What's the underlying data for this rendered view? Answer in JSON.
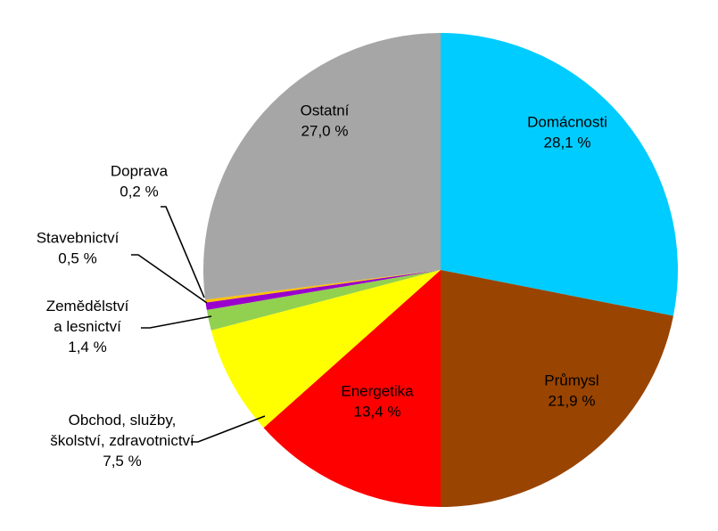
{
  "chart_data": {
    "type": "pie",
    "title": "",
    "slices": [
      {
        "label": "Domácnosti",
        "value": 28.1,
        "display": "28,1 %",
        "color": "#00ccff",
        "label_lines": [
          "Domácnosti"
        ],
        "leader": false
      },
      {
        "label": "Průmysl",
        "value": 21.9,
        "display": "21,9 %",
        "color": "#994400",
        "label_lines": [
          "Průmysl"
        ],
        "leader": false
      },
      {
        "label": "Energetika",
        "value": 13.4,
        "display": "13,4 %",
        "color": "#ff0000",
        "label_lines": [
          "Energetika"
        ],
        "leader": false
      },
      {
        "label": "Obchod, služby, školství, zdravotnictví",
        "value": 7.5,
        "display": "7,5 %",
        "color": "#ffff00",
        "label_lines": [
          "Obchod, služby,",
          "školství, zdravotnictví"
        ],
        "leader": true
      },
      {
        "label": "Zemědělství a lesnictví",
        "value": 1.4,
        "display": "1,4 %",
        "color": "#92d050",
        "label_lines": [
          "Zemědělství",
          "a lesnictví"
        ],
        "leader": true
      },
      {
        "label": "Stavebnictví",
        "value": 0.5,
        "display": "0,5 %",
        "color": "#9900cc",
        "label_lines": [
          "Stavebnictví"
        ],
        "leader": true
      },
      {
        "label": "Doprava",
        "value": 0.2,
        "display": "0,2 %",
        "color": "#ffc000",
        "label_lines": [
          "Doprava"
        ],
        "leader": true
      },
      {
        "label": "Ostatní",
        "value": 27.0,
        "display": "27,0 %",
        "color": "#a6a6a6",
        "label_lines": [
          "Ostatní"
        ],
        "leader": false
      }
    ]
  }
}
